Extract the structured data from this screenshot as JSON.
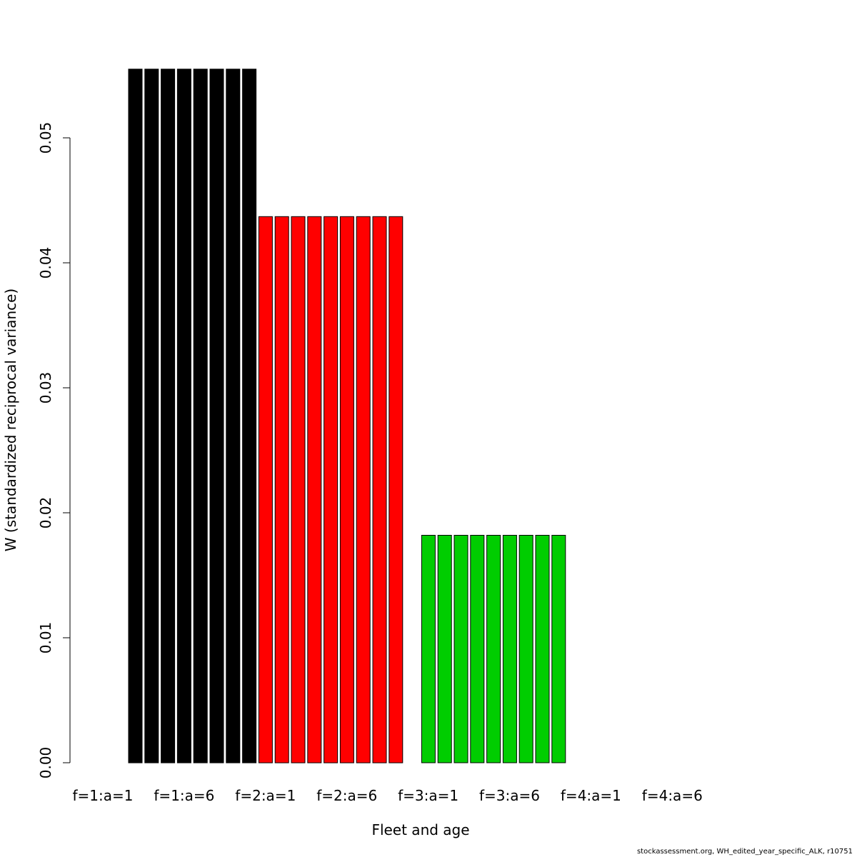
{
  "chart_data": {
    "type": "bar",
    "title": "",
    "xlabel": "Fleet and age",
    "ylabel": "W (standardized reciprocal variance)",
    "ylim": [
      0,
      0.055
    ],
    "yticks": [
      "0.00",
      "0.01",
      "0.02",
      "0.03",
      "0.04",
      "0.05"
    ],
    "ytick_values": [
      0,
      0.01,
      0.02,
      0.03,
      0.04,
      0.05
    ],
    "category_labels": [
      "f=1:a=1",
      "f=1:a=6",
      "f=2:a=1",
      "f=2:a=6",
      "f=3:a=1",
      "f=3:a=6",
      "f=4:a=1",
      "f=4:a=6"
    ],
    "groups": [
      {
        "fleet": 1,
        "color": "#000000",
        "values": [
          0.0555,
          0.0555,
          0.0555,
          0.0555,
          0.0555,
          0.0555,
          0.0555,
          0.0555
        ]
      },
      {
        "fleet": 2,
        "color": "#ff0000",
        "values": [
          0.0437,
          0.0437,
          0.0437,
          0.0437,
          0.0437,
          0.0437,
          0.0437,
          0.0437,
          0.0437
        ]
      },
      {
        "fleet": 3,
        "color": "#00cd00",
        "values": [
          0.0182,
          0.0182,
          0.0182,
          0.0182,
          0.0182,
          0.0182,
          0.0182,
          0.0182,
          0.0182
        ]
      },
      {
        "fleet": 4,
        "color": "#0000ff",
        "values": [
          0,
          0,
          0,
          0,
          0,
          0,
          0,
          0,
          0
        ]
      }
    ],
    "grid": false,
    "legend": "none"
  },
  "footer": {
    "text": "stockassessment.org, WH_edited_year_specific_ALK, r10751"
  }
}
